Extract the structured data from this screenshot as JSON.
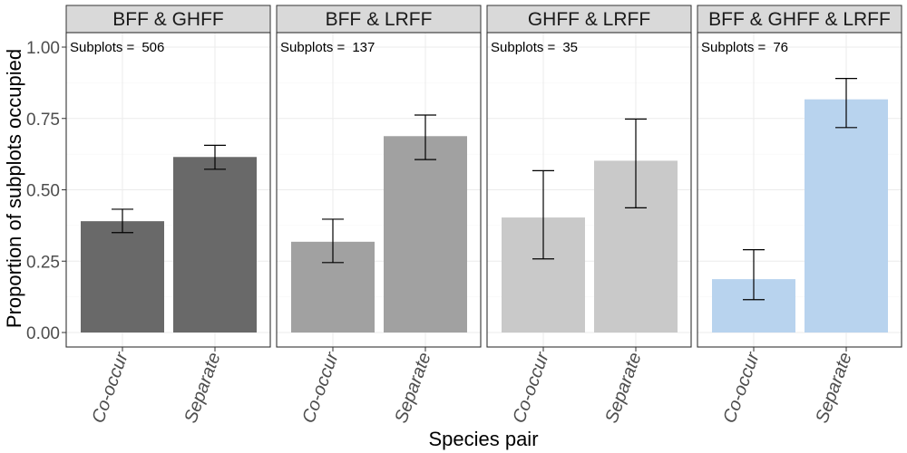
{
  "chart_data": {
    "type": "bar",
    "xlabel": "Species pair",
    "ylabel": "Proportion of subplots occupied",
    "ylim": [
      0,
      1.05
    ],
    "y_ticks": [
      0.0,
      0.25,
      0.5,
      0.75,
      1.0
    ],
    "y_tick_labels": [
      "0.00",
      "0.25",
      "0.50",
      "0.75",
      "1.00"
    ],
    "categories": [
      "Co-occur",
      "Separate"
    ],
    "grid": true,
    "legend": "none",
    "panels": [
      {
        "title": "BFF & GHFF",
        "note_label": "Subplots =",
        "note_value": "506",
        "color": "#696969",
        "values": [
          0.39,
          0.615
        ],
        "error_low": [
          0.35,
          0.572
        ],
        "error_high": [
          0.432,
          0.656
        ]
      },
      {
        "title": "BFF & LRFF",
        "note_label": "Subplots =",
        "note_value": "137",
        "color": "#a1a1a1",
        "values": [
          0.318,
          0.688
        ],
        "error_low": [
          0.245,
          0.606
        ],
        "error_high": [
          0.397,
          0.762
        ]
      },
      {
        "title": "GHFF & LRFF",
        "note_label": "Subplots =",
        "note_value": "35",
        "color": "#c9c9c9",
        "values": [
          0.403,
          0.602
        ],
        "error_low": [
          0.258,
          0.437
        ],
        "error_high": [
          0.567,
          0.748
        ]
      },
      {
        "title": "BFF & GHFF & LRFF",
        "note_label": "Subplots =",
        "note_value": "76",
        "color": "#b8d3ee",
        "values": [
          0.187,
          0.817
        ],
        "error_low": [
          0.115,
          0.718
        ],
        "error_high": [
          0.29,
          0.89
        ]
      }
    ]
  }
}
